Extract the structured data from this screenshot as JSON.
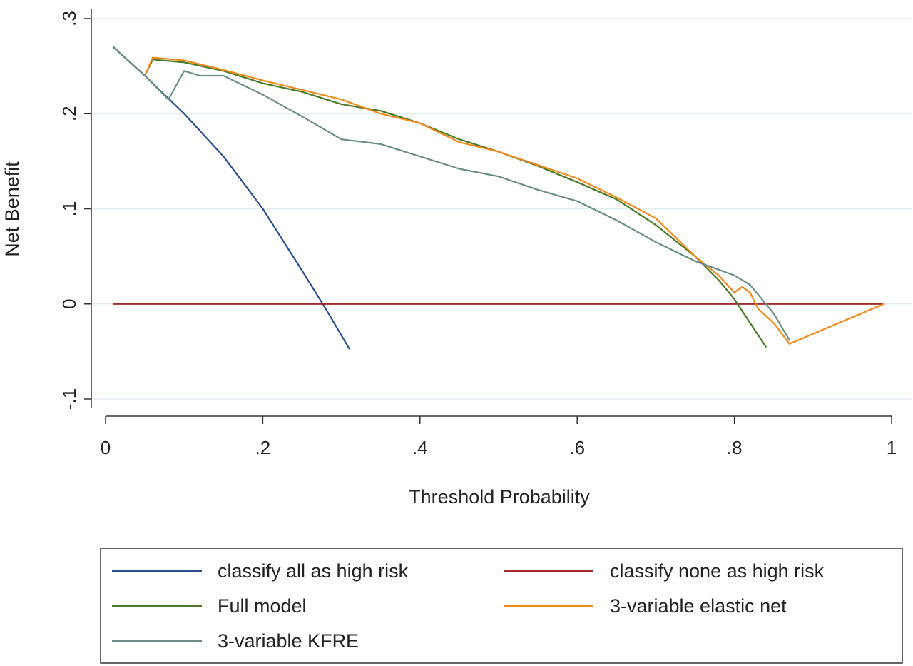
{
  "chart_data": {
    "type": "line",
    "title": "",
    "xlabel": "Threshold Probability",
    "ylabel": "Net Benefit",
    "xlim": [
      0,
      1
    ],
    "ylim": [
      -0.1,
      0.3
    ],
    "xticks": [
      0,
      0.2,
      0.4,
      0.6,
      0.8,
      1
    ],
    "xtick_labels": [
      "0",
      ".2",
      ".4",
      ".6",
      ".8",
      "1"
    ],
    "yticks": [
      -0.1,
      0,
      0.1,
      0.2,
      0.3
    ],
    "ytick_labels": [
      "-.1",
      "0",
      ".1",
      ".2",
      ".3"
    ],
    "grid": "horizontal",
    "legend_position": "bottom",
    "series": [
      {
        "name": "classify all as high risk",
        "color": "#2b4f8c",
        "x": [
          0.01,
          0.05,
          0.1,
          0.15,
          0.2,
          0.25,
          0.28,
          0.31
        ],
        "y": [
          0.27,
          0.24,
          0.2,
          0.155,
          0.1,
          0.035,
          -0.005,
          -0.047
        ]
      },
      {
        "name": "classify none as high risk",
        "color": "#a02a2e",
        "x": [
          0.01,
          0.99
        ],
        "y": [
          0,
          0
        ]
      },
      {
        "name": "Full model",
        "color": "#4a7a2a",
        "x": [
          0.01,
          0.05,
          0.06,
          0.1,
          0.15,
          0.2,
          0.25,
          0.3,
          0.35,
          0.4,
          0.45,
          0.5,
          0.55,
          0.6,
          0.65,
          0.7,
          0.75,
          0.78,
          0.8,
          0.82,
          0.84
        ],
        "y": [
          0.27,
          0.24,
          0.257,
          0.254,
          0.245,
          0.232,
          0.223,
          0.21,
          0.203,
          0.19,
          0.173,
          0.16,
          0.145,
          0.128,
          0.11,
          0.083,
          0.05,
          0.025,
          0.005,
          -0.02,
          -0.045
        ]
      },
      {
        "name": "3-variable elastic net",
        "color": "#f08a1c",
        "x": [
          0.05,
          0.06,
          0.1,
          0.15,
          0.2,
          0.25,
          0.3,
          0.35,
          0.4,
          0.45,
          0.5,
          0.55,
          0.6,
          0.65,
          0.7,
          0.75,
          0.78,
          0.8,
          0.81,
          0.82,
          0.83,
          0.85,
          0.87,
          0.99
        ],
        "y": [
          0.24,
          0.259,
          0.256,
          0.246,
          0.235,
          0.225,
          0.215,
          0.2,
          0.19,
          0.17,
          0.16,
          0.146,
          0.132,
          0.112,
          0.09,
          0.05,
          0.03,
          0.012,
          0.018,
          0.012,
          -0.005,
          -0.02,
          -0.042,
          0
        ]
      },
      {
        "name": "3-variable KFRE",
        "color": "#6b8f86",
        "x": [
          0.01,
          0.05,
          0.08,
          0.1,
          0.12,
          0.15,
          0.2,
          0.25,
          0.3,
          0.35,
          0.4,
          0.45,
          0.5,
          0.55,
          0.6,
          0.65,
          0.7,
          0.75,
          0.8,
          0.82,
          0.85,
          0.87
        ],
        "y": [
          0.27,
          0.24,
          0.215,
          0.245,
          0.24,
          0.24,
          0.22,
          0.197,
          0.173,
          0.168,
          0.155,
          0.142,
          0.134,
          0.12,
          0.108,
          0.088,
          0.065,
          0.045,
          0.03,
          0.02,
          -0.01,
          -0.038
        ]
      }
    ]
  }
}
